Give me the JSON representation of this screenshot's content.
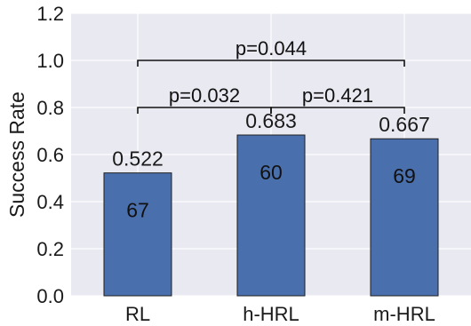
{
  "chart_data": {
    "type": "bar",
    "categories": [
      "RL",
      "h-HRL",
      "m-HRL"
    ],
    "values": [
      0.522,
      0.683,
      0.667
    ],
    "value_labels": [
      "0.522",
      "0.683",
      "0.667"
    ],
    "inner_labels": [
      "67",
      "60",
      "69"
    ],
    "title": "",
    "xlabel": "",
    "ylabel": "Success Rate",
    "ylim": [
      0.0,
      1.2
    ],
    "yticks": [
      0.0,
      0.2,
      0.4,
      0.6,
      0.8,
      1.0,
      1.2
    ],
    "ytick_labels": [
      "0.0",
      "0.2",
      "0.4",
      "0.6",
      "0.8",
      "1.0",
      "1.2"
    ],
    "grid": true,
    "comparisons": [
      {
        "from": "RL",
        "to": "m-HRL",
        "y": 1.0,
        "label": "p=0.044"
      },
      {
        "from": "RL",
        "to": "h-HRL",
        "y": 0.8,
        "label": "p=0.032"
      },
      {
        "from": "h-HRL",
        "to": "m-HRL",
        "y": 0.8,
        "label": "p=0.421"
      }
    ]
  },
  "colors": {
    "bar": "#4a6fad",
    "bar_edge": "#1f1f1f",
    "plot_background": "#e9e9f2",
    "grid": "#ffffff",
    "bracket": "#111111"
  }
}
